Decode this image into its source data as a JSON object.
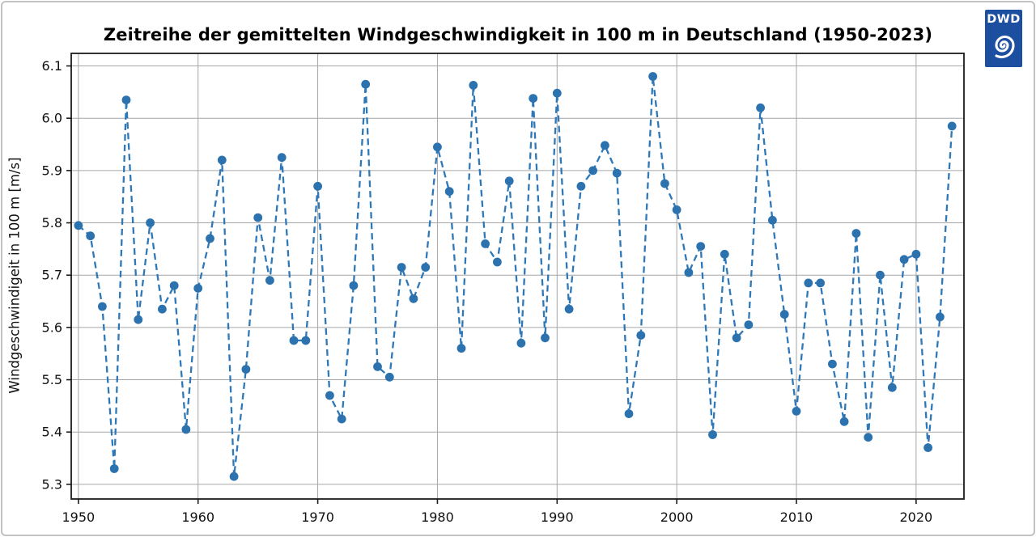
{
  "logo": {
    "text": "DWD"
  },
  "chart_data": {
    "type": "line",
    "title": "Zeitreihe der gemittelten Windgeschwindigkeit in 100 m in Deutschland (1950-2023)",
    "xlabel": "",
    "ylabel": "Windgeschwindigeit in 100 m [m/s]",
    "legend": "none",
    "grid": true,
    "line_style": "dashed",
    "marker": "circle",
    "line_color": "#2e78b8",
    "marker_color": "#2c72ae",
    "grid_color": "#a6a6a6",
    "spine_color": "#1c1c1c",
    "xlim": [
      1949.4,
      2024.0
    ],
    "ylim": [
      5.272,
      6.124
    ],
    "xticks": [
      1950,
      1960,
      1970,
      1980,
      1990,
      2000,
      2010,
      2020
    ],
    "yticks": [
      5.3,
      5.4,
      5.5,
      5.6,
      5.7,
      5.8,
      5.9,
      6.0,
      6.1
    ],
    "x": [
      1950,
      1951,
      1952,
      1953,
      1954,
      1955,
      1956,
      1957,
      1958,
      1959,
      1960,
      1961,
      1962,
      1963,
      1964,
      1965,
      1966,
      1967,
      1968,
      1969,
      1970,
      1971,
      1972,
      1973,
      1974,
      1975,
      1976,
      1977,
      1978,
      1979,
      1980,
      1981,
      1982,
      1983,
      1984,
      1985,
      1986,
      1987,
      1988,
      1989,
      1990,
      1991,
      1992,
      1993,
      1994,
      1995,
      1996,
      1997,
      1998,
      1999,
      2000,
      2001,
      2002,
      2003,
      2004,
      2005,
      2006,
      2007,
      2008,
      2009,
      2010,
      2011,
      2012,
      2013,
      2014,
      2015,
      2016,
      2017,
      2018,
      2019,
      2020,
      2021,
      2022,
      2023
    ],
    "values": [
      5.795,
      5.775,
      5.64,
      5.33,
      6.035,
      5.615,
      5.8,
      5.635,
      5.68,
      5.405,
      5.675,
      5.77,
      5.92,
      5.315,
      5.52,
      5.81,
      5.69,
      5.925,
      5.575,
      5.575,
      5.87,
      5.47,
      5.425,
      5.68,
      6.065,
      5.525,
      5.505,
      5.715,
      5.655,
      5.715,
      5.945,
      5.86,
      5.56,
      6.063,
      5.76,
      5.725,
      5.88,
      5.57,
      6.038,
      5.58,
      6.048,
      5.635,
      5.87,
      5.9,
      5.948,
      5.895,
      5.435,
      5.585,
      6.08,
      5.875,
      5.825,
      5.705,
      5.755,
      5.395,
      5.74,
      5.58,
      5.605,
      6.02,
      5.805,
      5.625,
      5.44,
      5.685,
      5.685,
      5.53,
      5.42,
      5.78,
      5.39,
      5.7,
      5.485,
      5.73,
      5.74,
      5.37,
      5.62,
      5.985
    ]
  }
}
